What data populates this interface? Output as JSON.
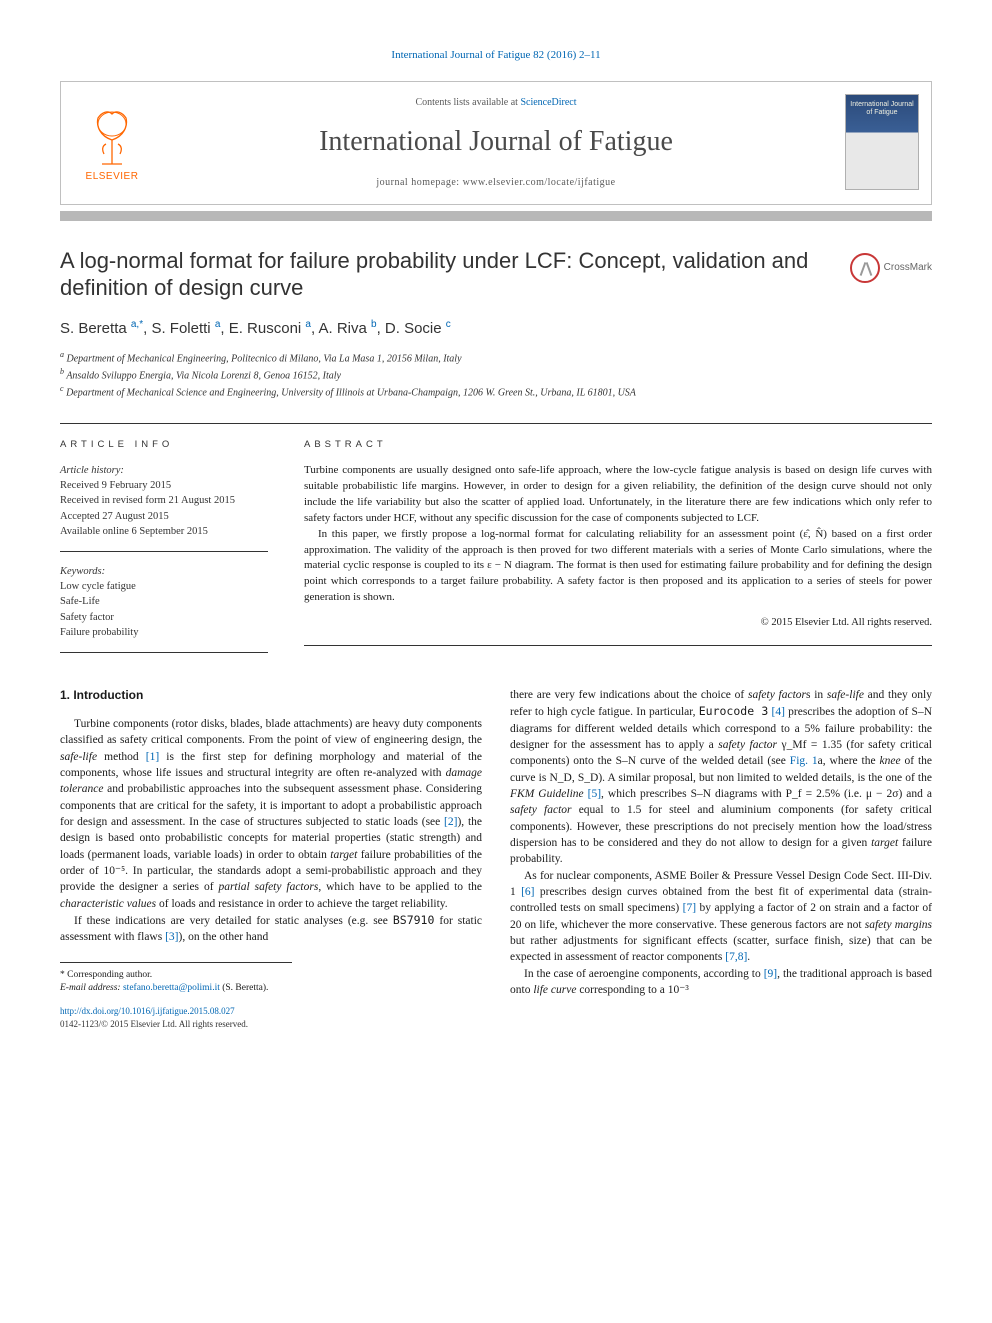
{
  "journal_ref_prefix": "International Journal of Fatigue 82 (2016) 2–11",
  "header": {
    "contents_prefix": "Contents lists available at ",
    "contents_link": "ScienceDirect",
    "journal_name": "International Journal of Fatigue",
    "homepage_prefix": "journal homepage: ",
    "homepage_url": "www.elsevier.com/locate/ijfatigue",
    "elsevier_label": "ELSEVIER",
    "cover_title": "International Journal of Fatigue"
  },
  "crossmark_label": "CrossMark",
  "title": "A log-normal format for failure probability under LCF: Concept, validation and definition of design curve",
  "authors_html": "S. Beretta <sup>a,*</sup>, S. Foletti <sup>a</sup>, E. Rusconi <sup>a</sup>, A. Riva <sup>b</sup>, D. Socie <sup>c</sup>",
  "affiliations": {
    "a": "Department of Mechanical Engineering, Politecnico di Milano, Via La Masa 1, 20156 Milan, Italy",
    "b": "Ansaldo Sviluppo Energia, Via Nicola Lorenzi 8, Genoa 16152, Italy",
    "c": "Department of Mechanical Science and Engineering, University of Illinois at Urbana-Champaign, 1206 W. Green St., Urbana, IL 61801, USA"
  },
  "info": {
    "label": "ARTICLE INFO",
    "history_head": "Article history:",
    "received": "Received 9 February 2015",
    "revised": "Received in revised form 21 August 2015",
    "accepted": "Accepted 27 August 2015",
    "online": "Available online 6 September 2015",
    "keywords_head": "Keywords:",
    "keywords": [
      "Low cycle fatigue",
      "Safe-Life",
      "Safety factor",
      "Failure probability"
    ]
  },
  "abstract": {
    "label": "ABSTRACT",
    "p1": "Turbine components are usually designed onto safe-life approach, where the low-cycle fatigue analysis is based on design life curves with suitable probabilistic life margins. However, in order to design for a given reliability, the definition of the design curve should not only include the life variability but also the scatter of applied load. Unfortunately, in the literature there are few indications which only refer to safety factors under HCF, without any specific discussion for the case of components subjected to LCF.",
    "p2": "In this paper, we firstly propose a log-normal format for calculating reliability for an assessment point (ε̂, N̂) based on a first order approximation. The validity of the approach is then proved for two different materials with a series of Monte Carlo simulations, where the material cyclic response is coupled to its ε − N diagram. The format is then used for estimating failure probability and for defining the design point which corresponds to a target failure probability. A safety factor is then proposed and its application to a series of steels for power generation is shown.",
    "copyright": "© 2015 Elsevier Ltd. All rights reserved."
  },
  "section1": {
    "heading": "1. Introduction",
    "col1_p1": "Turbine components (rotor disks, blades, blade attachments) are heavy duty components classified as safety critical components. From the point of view of engineering design, the safe-life method [1] is the first step for defining morphology and material of the components, whose life issues and structural integrity are often re-analyzed with damage tolerance and probabilistic approaches into the subsequent assessment phase. Considering components that are critical for the safety, it is important to adopt a probabilistic approach for design and assessment. In the case of structures subjected to static loads (see [2]), the design is based onto probabilistic concepts for material properties (static strength) and loads (permanent loads, variable loads) in order to obtain target failure probabilities of the order of 10⁻⁵. In particular, the standards adopt a semi-probabilistic approach and they provide the designer a series of partial safety factors, which have to be applied to the characteristic values of loads and resistance in order to achieve the target reliability.",
    "col1_p2": "If these indications are very detailed for static analyses (e.g. see BS7910 for static assessment with flaws [3]), on the other hand",
    "col2_p1": "there are very few indications about the choice of safety factors in safe-life and they only refer to high cycle fatigue. In particular, Eurocode 3 [4] prescribes the adoption of S–N diagrams for different welded details which correspond to a 5% failure probability: the designer for the assessment has to apply a safety factor γ_Mf = 1.35 (for safety critical components) onto the S–N curve of the welded detail (see Fig. 1a, where the knee of the curve is N_D, S_D). A similar proposal, but non limited to welded details, is the one of the FKM Guideline [5], which prescribes S–N diagrams with P_f = 2.5% (i.e. μ − 2σ) and a safety factor equal to 1.5 for steel and aluminium components (for safety critical components). However, these prescriptions do not precisely mention how the load/stress dispersion has to be considered and they do not allow to design for a given target failure probability.",
    "col2_p2": "As for nuclear components, ASME Boiler & Pressure Vessel Design Code Sect. III-Div. 1 [6] prescribes design curves obtained from the best fit of experimental data (strain-controlled tests on small specimens) [7] by applying a factor of 2 on strain and a factor of 20 on life, whichever the more conservative. These generous factors are not safety margins but rather adjustments for significant effects (scatter, surface finish, size) that can be expected in assessment of reactor components [7,8].",
    "col2_p3": "In the case of aeroengine components, according to [9], the traditional approach is based onto life curve corresponding to a 10⁻³"
  },
  "footnote": {
    "corr": "* Corresponding author.",
    "email_label": "E-mail address: ",
    "email": "stefano.beretta@polimi.it",
    "email_suffix": " (S. Beretta)."
  },
  "footer": {
    "doi": "http://dx.doi.org/10.1016/j.ijfatigue.2015.08.027",
    "issn": "0142-1123/© 2015 Elsevier Ltd. All rights reserved."
  },
  "colors": {
    "link": "#0066b3",
    "elsevier_orange": "#ff6600",
    "rule_gray": "#b8b8b8",
    "text": "#1a1a1a",
    "crossmark_ring": "#c83737"
  }
}
